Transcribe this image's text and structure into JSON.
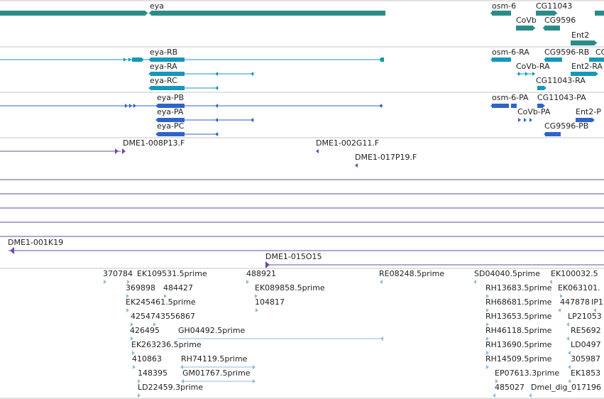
{
  "colors": {
    "teal": "#2a8c88",
    "cyan": "#1698b8",
    "blue": "#2f63c8",
    "purple": "#6a4aa6",
    "est": "#8fb9dc",
    "divider": "#c4c4c4"
  },
  "icons": {
    "strand_right": "right-arrow-icon",
    "strand_left": "left-arrow-icon"
  },
  "genes_track": {
    "labels": [
      "eya",
      "osm-6",
      "CG11043",
      "CoVb",
      "CG9596",
      "Ent2"
    ]
  },
  "transcripts_cyan": {
    "labels": [
      "eya-RB",
      "eya-RA",
      "eya-RC",
      "osm-6-RA",
      "CG9596-RB",
      "CG",
      "CoVb-RA",
      "Ent2-RA",
      "CG11043-RA"
    ]
  },
  "transcripts_blue": {
    "labels": [
      "eya-PB",
      "eya-PA",
      "eya-PC",
      "osm-6-PA",
      "CG11043-PA",
      "CoVb-PA",
      "Ent2-P",
      "CG9596-PB"
    ]
  },
  "clones": {
    "labels": [
      "DME1-008P13.F",
      "DME1-002G11.F",
      "DME1-017P19.F"
    ]
  },
  "bacs": {
    "labels": [
      "DME1-001K19",
      "DME1-015O15"
    ]
  },
  "ests": {
    "labels": [
      "370784",
      "EK109531.5prime",
      "488921",
      "RE08248.5prime",
      "SD04040.5prime",
      "EK100032.5",
      "369898",
      "484427",
      "EK089858.5prime",
      "RH13683.5prime",
      "EK063101.",
      "EK245461.5prime",
      "104817",
      "RH68681.5prime",
      "447878",
      "IP1",
      "4254743556867",
      "RH13653.5prime",
      "LP21053",
      "426495",
      "GH04492.5prime",
      "RH46118.5prime",
      "RE5692",
      "EK263236.5prime",
      "RH13690.5prime",
      "LD0497",
      "410863",
      "RH74119.5prime",
      "RH14509.5prime",
      "305987",
      "148395",
      "GM01767.5prime",
      "EP07613.3prime",
      "EK1853",
      "LD22459.3prime",
      "485027",
      "Dmel_dig_017196"
    ]
  }
}
